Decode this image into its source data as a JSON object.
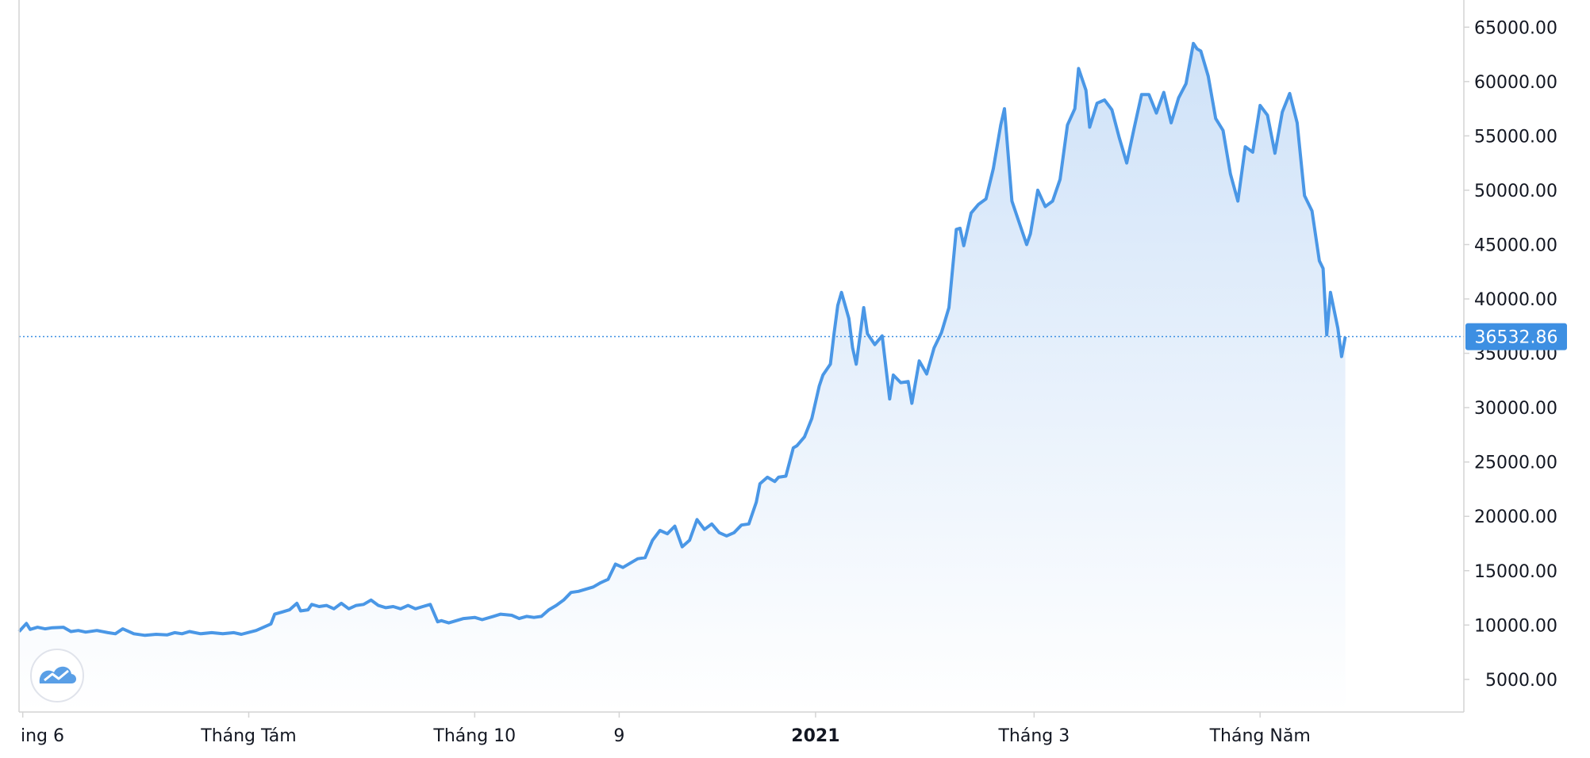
{
  "chart_data": {
    "type": "area",
    "x_axis_labels": [
      {
        "label": "ing 6",
        "date": "2020-06-01",
        "bold": false
      },
      {
        "label": "Tháng Tám",
        "date": "2020-08-01",
        "bold": false
      },
      {
        "label": "Tháng 10",
        "date": "2020-10-01",
        "bold": false
      },
      {
        "label": "9",
        "date": "2020-11-09",
        "bold": false
      },
      {
        "label": "2021",
        "date": "2021-01-01",
        "bold": true
      },
      {
        "label": "Tháng 3",
        "date": "2021-03-01",
        "bold": false
      },
      {
        "label": "Tháng Năm",
        "date": "2021-05-01",
        "bold": false
      }
    ],
    "y_ticks": [
      "5000.00",
      "10000.00",
      "15000.00",
      "20000.00",
      "25000.00",
      "30000.00",
      "35000.00",
      "40000.00",
      "45000.00",
      "50000.00",
      "55000.00",
      "60000.00",
      "65000.00"
    ],
    "ylim": [
      2000,
      67500
    ],
    "xlim": [
      "2020-05-31",
      "2021-06-25"
    ],
    "last_price": "36532.86",
    "last_price_value": 36532.86,
    "colors": {
      "line": "#4a97e6",
      "area_top": "#cfe2f8",
      "area_bottom": "#ffffff",
      "price_badge": "#3d8fe2",
      "price_line": "#3d8fe2",
      "axis": "#d4d4d4"
    },
    "logo_icon": "tradingview-cloud-icon",
    "series": [
      {
        "values": [
          [
            "2020-05-31",
            9400
          ],
          [
            "2020-06-02",
            10150
          ],
          [
            "2020-06-03",
            9600
          ],
          [
            "2020-06-05",
            9800
          ],
          [
            "2020-06-07",
            9650
          ],
          [
            "2020-06-09",
            9750
          ],
          [
            "2020-06-12",
            9800
          ],
          [
            "2020-06-14",
            9400
          ],
          [
            "2020-06-16",
            9500
          ],
          [
            "2020-06-18",
            9350
          ],
          [
            "2020-06-21",
            9500
          ],
          [
            "2020-06-24",
            9300
          ],
          [
            "2020-06-26",
            9200
          ],
          [
            "2020-06-28",
            9650
          ],
          [
            "2020-07-01",
            9200
          ],
          [
            "2020-07-04",
            9050
          ],
          [
            "2020-07-07",
            9150
          ],
          [
            "2020-07-10",
            9100
          ],
          [
            "2020-07-12",
            9300
          ],
          [
            "2020-07-14",
            9200
          ],
          [
            "2020-07-16",
            9400
          ],
          [
            "2020-07-19",
            9200
          ],
          [
            "2020-07-22",
            9300
          ],
          [
            "2020-07-25",
            9200
          ],
          [
            "2020-07-28",
            9300
          ],
          [
            "2020-07-30",
            9150
          ],
          [
            "2020-08-03",
            9500
          ],
          [
            "2020-08-05",
            9800
          ],
          [
            "2020-08-07",
            10100
          ],
          [
            "2020-08-08",
            11000
          ],
          [
            "2020-08-10",
            11200
          ],
          [
            "2020-08-12",
            11400
          ],
          [
            "2020-08-14",
            12000
          ],
          [
            "2020-08-15",
            11300
          ],
          [
            "2020-08-17",
            11400
          ],
          [
            "2020-08-18",
            11900
          ],
          [
            "2020-08-20",
            11700
          ],
          [
            "2020-08-22",
            11800
          ],
          [
            "2020-08-24",
            11500
          ],
          [
            "2020-08-26",
            12000
          ],
          [
            "2020-08-28",
            11500
          ],
          [
            "2020-08-30",
            11800
          ],
          [
            "2020-09-01",
            11900
          ],
          [
            "2020-09-03",
            12300
          ],
          [
            "2020-09-05",
            11800
          ],
          [
            "2020-09-07",
            11600
          ],
          [
            "2020-09-09",
            11700
          ],
          [
            "2020-09-11",
            11500
          ],
          [
            "2020-09-13",
            11800
          ],
          [
            "2020-09-15",
            11500
          ],
          [
            "2020-09-17",
            11700
          ],
          [
            "2020-09-19",
            11900
          ],
          [
            "2020-09-21",
            10300
          ],
          [
            "2020-09-22",
            10400
          ],
          [
            "2020-09-24",
            10200
          ],
          [
            "2020-09-26",
            10400
          ],
          [
            "2020-09-28",
            10600
          ],
          [
            "2020-10-01",
            10700
          ],
          [
            "2020-10-03",
            10500
          ],
          [
            "2020-10-06",
            10800
          ],
          [
            "2020-10-08",
            11000
          ],
          [
            "2020-10-11",
            10900
          ],
          [
            "2020-10-13",
            10600
          ],
          [
            "2020-10-15",
            10800
          ],
          [
            "2020-10-17",
            10700
          ],
          [
            "2020-10-19",
            10800
          ],
          [
            "2020-10-21",
            11400
          ],
          [
            "2020-10-23",
            11800
          ],
          [
            "2020-10-25",
            12300
          ],
          [
            "2020-10-27",
            13000
          ],
          [
            "2020-10-29",
            13100
          ],
          [
            "2020-10-31",
            13300
          ],
          [
            "2020-11-02",
            13500
          ],
          [
            "2020-11-04",
            13900
          ],
          [
            "2020-11-06",
            14200
          ],
          [
            "2020-11-08",
            15600
          ],
          [
            "2020-11-10",
            15300
          ],
          [
            "2020-11-12",
            15700
          ],
          [
            "2020-11-14",
            16100
          ],
          [
            "2020-11-16",
            16200
          ],
          [
            "2020-11-18",
            17800
          ],
          [
            "2020-11-20",
            18700
          ],
          [
            "2020-11-22",
            18400
          ],
          [
            "2020-11-24",
            19100
          ],
          [
            "2020-11-26",
            17200
          ],
          [
            "2020-11-28",
            17800
          ],
          [
            "2020-11-30",
            19700
          ],
          [
            "2020-12-02",
            18800
          ],
          [
            "2020-12-04",
            19300
          ],
          [
            "2020-12-06",
            18500
          ],
          [
            "2020-12-08",
            18200
          ],
          [
            "2020-12-10",
            18500
          ],
          [
            "2020-12-12",
            19200
          ],
          [
            "2020-12-14",
            19300
          ],
          [
            "2020-12-16",
            21300
          ],
          [
            "2020-12-17",
            23000
          ],
          [
            "2020-12-19",
            23600
          ],
          [
            "2020-12-21",
            23200
          ],
          [
            "2020-12-22",
            23600
          ],
          [
            "2020-12-24",
            23700
          ],
          [
            "2020-12-26",
            26300
          ],
          [
            "2020-12-27",
            26500
          ],
          [
            "2020-12-29",
            27300
          ],
          [
            "2020-12-31",
            29000
          ],
          [
            "2021-01-02",
            32000
          ],
          [
            "2021-01-03",
            33000
          ],
          [
            "2021-01-05",
            34000
          ],
          [
            "2021-01-06",
            36800
          ],
          [
            "2021-01-07",
            39400
          ],
          [
            "2021-01-08",
            40600
          ],
          [
            "2021-01-10",
            38200
          ],
          [
            "2021-01-11",
            35500
          ],
          [
            "2021-01-12",
            34000
          ],
          [
            "2021-01-14",
            39200
          ],
          [
            "2021-01-15",
            36800
          ],
          [
            "2021-01-17",
            35800
          ],
          [
            "2021-01-19",
            36600
          ],
          [
            "2021-01-21",
            30800
          ],
          [
            "2021-01-22",
            33000
          ],
          [
            "2021-01-24",
            32300
          ],
          [
            "2021-01-26",
            32400
          ],
          [
            "2021-01-27",
            30400
          ],
          [
            "2021-01-29",
            34300
          ],
          [
            "2021-01-31",
            33100
          ],
          [
            "2021-02-02",
            35500
          ],
          [
            "2021-02-04",
            36900
          ],
          [
            "2021-02-06",
            39200
          ],
          [
            "2021-02-08",
            46400
          ],
          [
            "2021-02-09",
            46500
          ],
          [
            "2021-02-10",
            44900
          ],
          [
            "2021-02-12",
            47900
          ],
          [
            "2021-02-14",
            48700
          ],
          [
            "2021-02-16",
            49200
          ],
          [
            "2021-02-18",
            52000
          ],
          [
            "2021-02-20",
            56000
          ],
          [
            "2021-02-21",
            57500
          ],
          [
            "2021-02-23",
            49000
          ],
          [
            "2021-02-25",
            47000
          ],
          [
            "2021-02-27",
            45000
          ],
          [
            "2021-02-28",
            46000
          ],
          [
            "2021-03-02",
            50000
          ],
          [
            "2021-03-04",
            48500
          ],
          [
            "2021-03-06",
            49000
          ],
          [
            "2021-03-08",
            51000
          ],
          [
            "2021-03-10",
            56000
          ],
          [
            "2021-03-12",
            57500
          ],
          [
            "2021-03-13",
            61200
          ],
          [
            "2021-03-15",
            59200
          ],
          [
            "2021-03-16",
            55800
          ],
          [
            "2021-03-18",
            58000
          ],
          [
            "2021-03-20",
            58300
          ],
          [
            "2021-03-22",
            57400
          ],
          [
            "2021-03-24",
            54800
          ],
          [
            "2021-03-26",
            52500
          ],
          [
            "2021-03-28",
            55700
          ],
          [
            "2021-03-30",
            58800
          ],
          [
            "2021-04-01",
            58800
          ],
          [
            "2021-04-03",
            57100
          ],
          [
            "2021-04-05",
            59000
          ],
          [
            "2021-04-07",
            56200
          ],
          [
            "2021-04-09",
            58500
          ],
          [
            "2021-04-11",
            59800
          ],
          [
            "2021-04-13",
            63500
          ],
          [
            "2021-04-14",
            63000
          ],
          [
            "2021-04-15",
            62800
          ],
          [
            "2021-04-17",
            60500
          ],
          [
            "2021-04-19",
            56600
          ],
          [
            "2021-04-21",
            55500
          ],
          [
            "2021-04-23",
            51500
          ],
          [
            "2021-04-25",
            49000
          ],
          [
            "2021-04-27",
            54000
          ],
          [
            "2021-04-29",
            53500
          ],
          [
            "2021-05-01",
            57800
          ],
          [
            "2021-05-03",
            56900
          ],
          [
            "2021-05-05",
            53400
          ],
          [
            "2021-05-07",
            57200
          ],
          [
            "2021-05-09",
            58900
          ],
          [
            "2021-05-11",
            56200
          ],
          [
            "2021-05-13",
            49500
          ],
          [
            "2021-05-15",
            48100
          ],
          [
            "2021-05-17",
            43500
          ],
          [
            "2021-05-18",
            42800
          ],
          [
            "2021-05-19",
            36700
          ],
          [
            "2021-05-20",
            40600
          ],
          [
            "2021-05-22",
            37300
          ],
          [
            "2021-05-23",
            34700
          ],
          [
            "2021-05-24",
            36532.86
          ]
        ]
      }
    ]
  }
}
